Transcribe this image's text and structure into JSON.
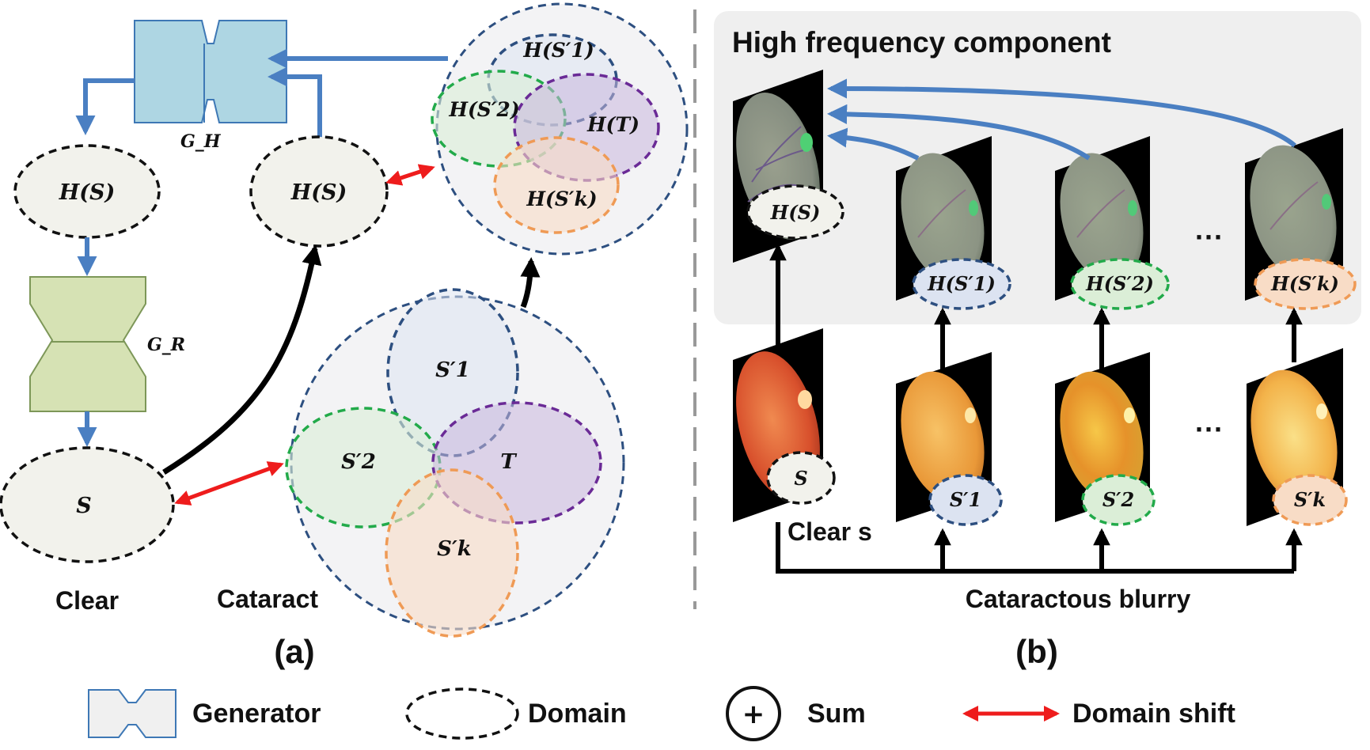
{
  "panel_a": {
    "caption": "(a)",
    "gen_h_label": "G_H",
    "gen_r_label": "G_R",
    "domain_hs_left": "H(S)",
    "domain_hs_right": "H(S)",
    "domain_s": "S",
    "label_clear": "Clear",
    "label_cataract": "Cataract",
    "hf_domains": [
      "H(S′1)",
      "H(S′2)",
      "H(T)",
      "H(S′k)"
    ],
    "cataract_domains": [
      "S′1",
      "S′2",
      "T",
      "S′k"
    ]
  },
  "panel_b": {
    "caption": "(b)",
    "hf_title": "High frequency component",
    "hf_labels": [
      "H(S)",
      "H(S′1)",
      "H(S′2)",
      "H(S′k)"
    ],
    "img_labels": [
      "S",
      "S′1",
      "S′2",
      "S′k"
    ],
    "ellipsis": "···",
    "label_clear_s": "Clear s",
    "label_blurry": "Cataractous blurry"
  },
  "legend": {
    "generator": "Generator",
    "domain": "Domain",
    "sum": "Sum",
    "shift": "Domain shift",
    "sum_symbol": "+"
  },
  "colors": {
    "blue_arrow": "#4a7fc2",
    "red_arrow": "#ee1c1c",
    "generator_h": "#aed6e3",
    "generator_r": "#d6e2b4",
    "s1": "#2d4f80",
    "s2": "#22aa4a",
    "t": "#6a2a96",
    "sk": "#ef9a55"
  }
}
